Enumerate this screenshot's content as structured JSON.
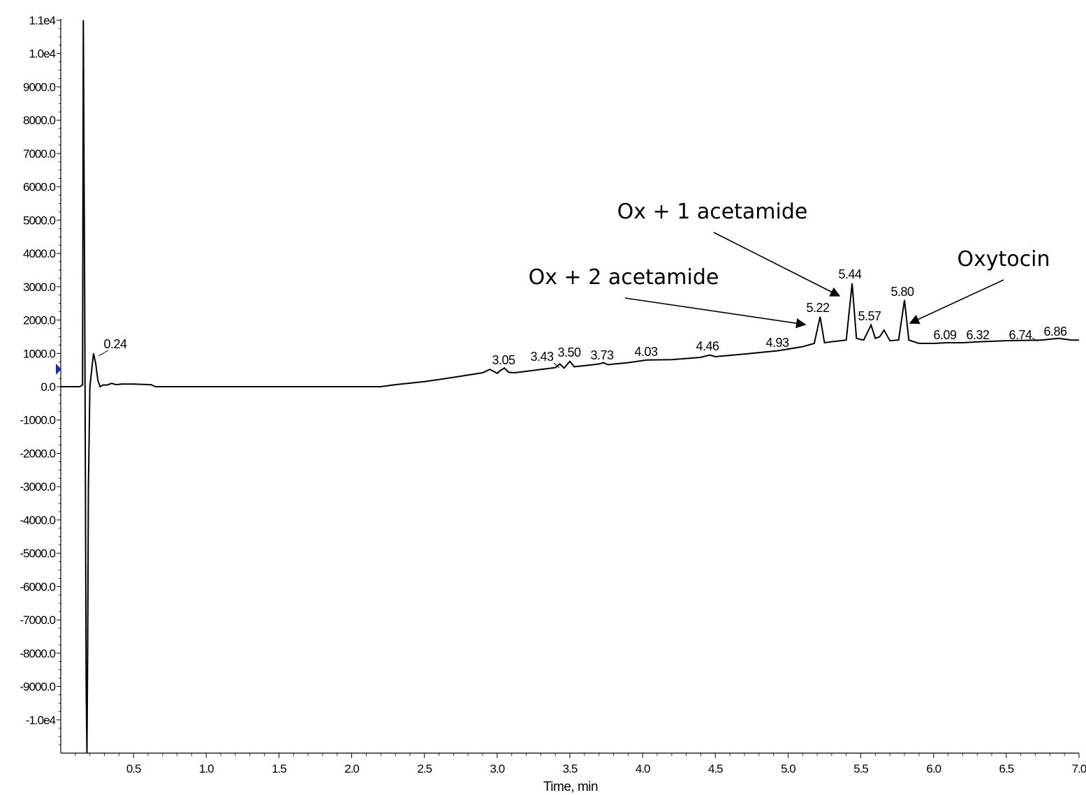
{
  "chart_data": {
    "type": "line",
    "xlabel": "Time, min",
    "ylabel": "",
    "xlim": [
      0,
      7.0
    ],
    "ylim": [
      -11000,
      11000
    ],
    "grid": false,
    "x_ticks": [
      {
        "value": 0.5,
        "label": "0.5"
      },
      {
        "value": 1.0,
        "label": "1.0"
      },
      {
        "value": 1.5,
        "label": "1.5"
      },
      {
        "value": 2.0,
        "label": "2.0"
      },
      {
        "value": 2.5,
        "label": "2.5"
      },
      {
        "value": 3.0,
        "label": "3.0"
      },
      {
        "value": 3.5,
        "label": "3.5"
      },
      {
        "value": 4.0,
        "label": "4.0"
      },
      {
        "value": 4.5,
        "label": "4.5"
      },
      {
        "value": 5.0,
        "label": "5.0"
      },
      {
        "value": 5.5,
        "label": "5.5"
      },
      {
        "value": 6.0,
        "label": "6.0"
      },
      {
        "value": 6.5,
        "label": "6.5"
      },
      {
        "value": 7.0,
        "label": "7.0"
      }
    ],
    "y_ticks": [
      {
        "value": 11000,
        "label": "1.1e4"
      },
      {
        "value": 10000,
        "label": "1.0e4"
      },
      {
        "value": 9000,
        "label": "9000.0"
      },
      {
        "value": 8000,
        "label": "8000.0"
      },
      {
        "value": 7000,
        "label": "7000.0"
      },
      {
        "value": 6000,
        "label": "6000.0"
      },
      {
        "value": 5000,
        "label": "5000.0"
      },
      {
        "value": 4000,
        "label": "4000.0"
      },
      {
        "value": 3000,
        "label": "3000.0"
      },
      {
        "value": 2000,
        "label": "2000.0"
      },
      {
        "value": 1000,
        "label": "1000.0"
      },
      {
        "value": 0,
        "label": "0.0"
      },
      {
        "value": -1000,
        "label": "-1000.0"
      },
      {
        "value": -2000,
        "label": "-2000.0"
      },
      {
        "value": -3000,
        "label": "-3000.0"
      },
      {
        "value": -4000,
        "label": "-4000.0"
      },
      {
        "value": -5000,
        "label": "-5000.0"
      },
      {
        "value": -6000,
        "label": "-6000.0"
      },
      {
        "value": -7000,
        "label": "-7000.0"
      },
      {
        "value": -8000,
        "label": "-8000.0"
      },
      {
        "value": -9000,
        "label": "-9000.0"
      },
      {
        "value": -10000,
        "label": "-1.0e4"
      }
    ],
    "series": [
      {
        "x": [
          0.0,
          0.13,
          0.15,
          0.155,
          0.165,
          0.175,
          0.18,
          0.185,
          0.19,
          0.2,
          0.215,
          0.225,
          0.24,
          0.255,
          0.27,
          0.29,
          0.32,
          0.35,
          0.38,
          0.42,
          0.5,
          0.62,
          0.65,
          0.8,
          1.0,
          1.5,
          2.0,
          2.2,
          2.3,
          2.5,
          2.7,
          2.9,
          2.95,
          2.98,
          3.0,
          3.02,
          3.05,
          3.08,
          3.12,
          3.2,
          3.3,
          3.4,
          3.43,
          3.46,
          3.5,
          3.53,
          3.6,
          3.7,
          3.73,
          3.76,
          3.9,
          4.03,
          4.2,
          4.4,
          4.46,
          4.5,
          4.7,
          4.93,
          5.1,
          5.18,
          5.22,
          5.25,
          5.3,
          5.4,
          5.44,
          5.47,
          5.52,
          5.57,
          5.6,
          5.63,
          5.66,
          5.7,
          5.76,
          5.8,
          5.83,
          5.9,
          6.0,
          6.09,
          6.2,
          6.32,
          6.5,
          6.74,
          6.86,
          6.95,
          7.0
        ],
        "values": [
          0,
          0,
          50,
          11000,
          2000,
          -9000,
          -11000,
          -8000,
          -3000,
          0,
          600,
          1000,
          700,
          200,
          0,
          50,
          50,
          100,
          60,
          80,
          80,
          60,
          0,
          0,
          0,
          0,
          0,
          0,
          60,
          150,
          280,
          420,
          520,
          450,
          400,
          480,
          560,
          430,
          420,
          460,
          520,
          570,
          680,
          560,
          760,
          600,
          630,
          680,
          720,
          660,
          720,
          800,
          810,
          880,
          950,
          900,
          980,
          1080,
          1200,
          1300,
          2100,
          1320,
          1350,
          1400,
          3100,
          1450,
          1400,
          1850,
          1450,
          1500,
          1700,
          1380,
          1400,
          2600,
          1400,
          1300,
          1300,
          1320,
          1320,
          1350,
          1380,
          1400,
          1450,
          1400,
          1400
        ]
      }
    ],
    "peak_labels": [
      "0.24",
      "3.05",
      "3.43",
      "3.50",
      "3.73",
      "4.03",
      "4.46",
      "4.93",
      "5.22",
      "5.44",
      "5.57",
      "5.80",
      "6.09",
      "6.32",
      "6.74",
      "6.86"
    ],
    "annotations": [
      "Ox + 1 acetamide",
      "Ox + 2 acetamide",
      "Oxytocin"
    ]
  }
}
